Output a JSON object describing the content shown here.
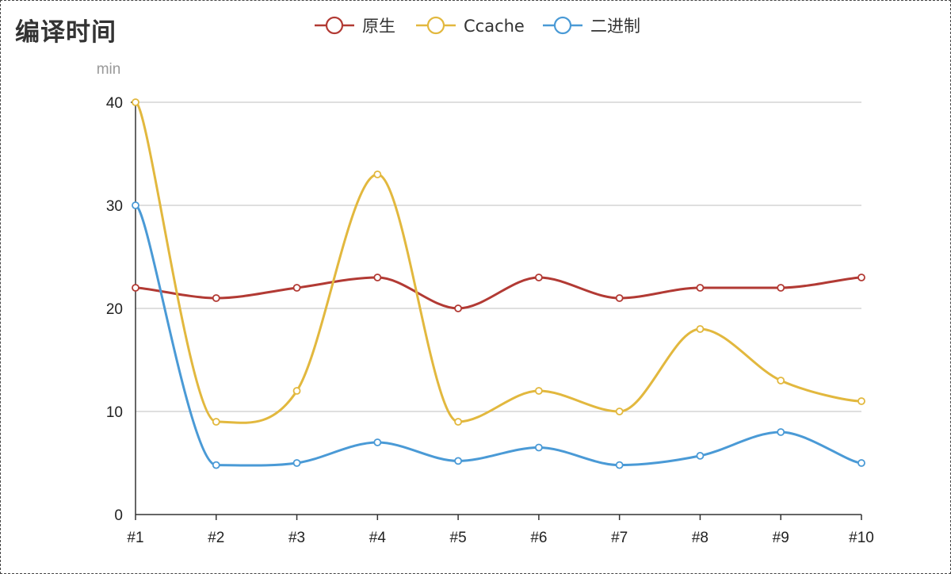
{
  "chart_data": {
    "type": "line",
    "title": "编译时间",
    "ylabel": "min",
    "xlabel": "",
    "categories": [
      "#1",
      "#2",
      "#3",
      "#4",
      "#5",
      "#6",
      "#7",
      "#8",
      "#9",
      "#10"
    ],
    "ylim": [
      0,
      40
    ],
    "yticks": [
      0,
      10,
      20,
      30,
      40
    ],
    "grid": true,
    "smooth": true,
    "legend_position": "top-center",
    "series": [
      {
        "name": "原生",
        "color": "#b23a34",
        "values": [
          22,
          21,
          22,
          23,
          20,
          23,
          21,
          22,
          22,
          23
        ]
      },
      {
        "name": "Ccache",
        "color": "#e2b83e",
        "values": [
          40,
          9,
          12,
          33,
          9,
          12,
          10,
          18,
          13,
          11
        ]
      },
      {
        "name": "二进制",
        "color": "#4a9ad6",
        "values": [
          30,
          4.8,
          5,
          7,
          5.2,
          6.5,
          4.8,
          5.7,
          8,
          5
        ]
      }
    ]
  }
}
